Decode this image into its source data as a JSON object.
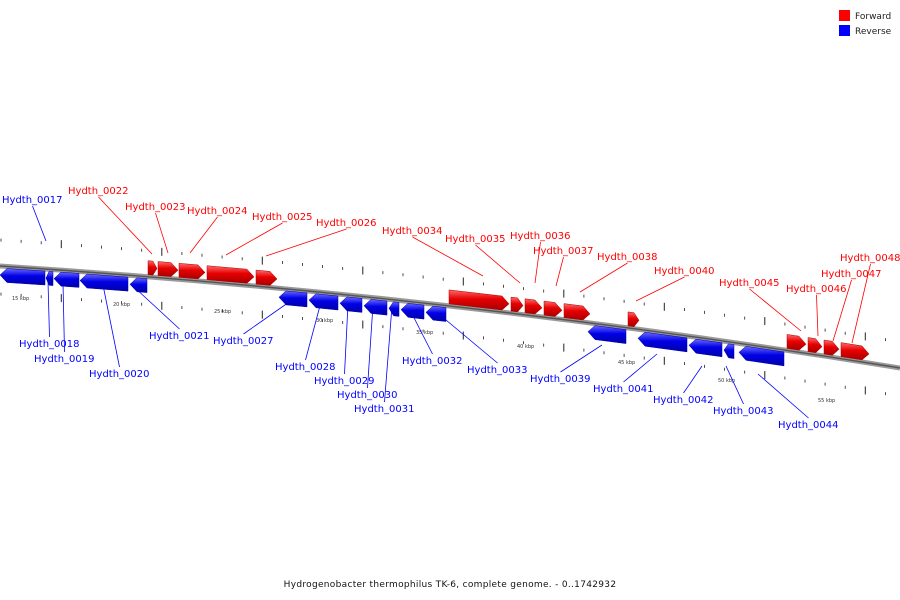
{
  "legend": {
    "forward": {
      "label": "Forward",
      "color": "#ff0000"
    },
    "reverse": {
      "label": "Reverse",
      "color": "#0000ff"
    }
  },
  "caption": "Hydrogenobacter thermophilus TK-6, complete genome. - 0..1742932",
  "scale_labels": [
    "15 kbp",
    "20 kbp",
    "25 kbp",
    "30 kbp",
    "35 kbp",
    "40 kbp",
    "45 kbp",
    "50 kbp",
    "55 kbp"
  ],
  "genes": [
    {
      "name": "Hydth_0017",
      "strand": "reverse"
    },
    {
      "name": "Hydth_0018",
      "strand": "reverse"
    },
    {
      "name": "Hydth_0019",
      "strand": "reverse"
    },
    {
      "name": "Hydth_0020",
      "strand": "reverse"
    },
    {
      "name": "Hydth_0021",
      "strand": "reverse"
    },
    {
      "name": "Hydth_0022",
      "strand": "forward"
    },
    {
      "name": "Hydth_0023",
      "strand": "forward"
    },
    {
      "name": "Hydth_0024",
      "strand": "forward"
    },
    {
      "name": "Hydth_0025",
      "strand": "forward"
    },
    {
      "name": "Hydth_0026",
      "strand": "forward"
    },
    {
      "name": "Hydth_0027",
      "strand": "reverse"
    },
    {
      "name": "Hydth_0028",
      "strand": "reverse"
    },
    {
      "name": "Hydth_0029",
      "strand": "reverse"
    },
    {
      "name": "Hydth_0030",
      "strand": "reverse"
    },
    {
      "name": "Hydth_0031",
      "strand": "reverse"
    },
    {
      "name": "Hydth_0032",
      "strand": "reverse"
    },
    {
      "name": "Hydth_0033",
      "strand": "reverse"
    },
    {
      "name": "Hydth_0034",
      "strand": "forward"
    },
    {
      "name": "Hydth_0035",
      "strand": "forward"
    },
    {
      "name": "Hydth_0036",
      "strand": "forward"
    },
    {
      "name": "Hydth_0037",
      "strand": "forward"
    },
    {
      "name": "Hydth_0038",
      "strand": "forward"
    },
    {
      "name": "Hydth_0039",
      "strand": "reverse"
    },
    {
      "name": "Hydth_0040",
      "strand": "forward"
    },
    {
      "name": "Hydth_0041",
      "strand": "reverse"
    },
    {
      "name": "Hydth_0042",
      "strand": "reverse"
    },
    {
      "name": "Hydth_0043",
      "strand": "reverse"
    },
    {
      "name": "Hydth_0044",
      "strand": "reverse"
    },
    {
      "name": "Hydth_0045",
      "strand": "forward"
    },
    {
      "name": "Hydth_0046",
      "strand": "forward"
    },
    {
      "name": "Hydth_0047",
      "strand": "forward"
    },
    {
      "name": "Hydth_0048",
      "strand": "forward"
    }
  ]
}
